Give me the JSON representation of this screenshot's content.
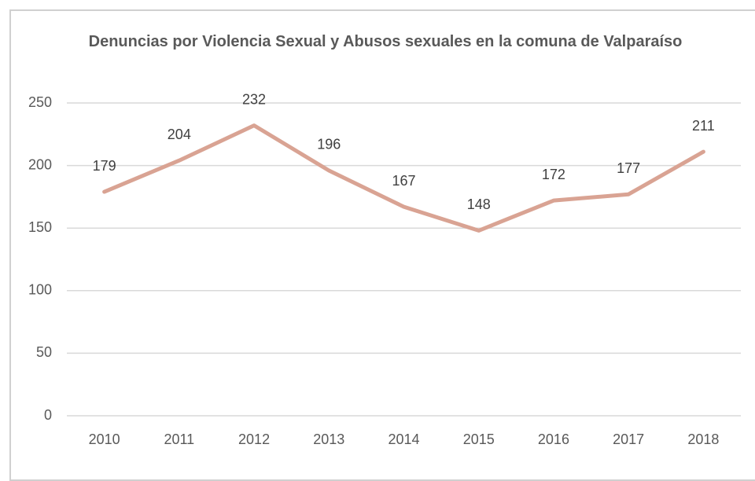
{
  "chart_data": {
    "type": "line",
    "title": "Denuncias por Violencia Sexual y Abusos sexuales en la comuna de Valparaíso",
    "categories": [
      "2010",
      "2011",
      "2012",
      "2013",
      "2014",
      "2015",
      "2016",
      "2017",
      "2018"
    ],
    "values": [
      179,
      204,
      232,
      196,
      167,
      148,
      172,
      177,
      211
    ],
    "color": "#d9a393",
    "ylim": [
      0,
      250
    ],
    "yticks": [
      0,
      50,
      100,
      150,
      200,
      250
    ],
    "grid": true
  }
}
